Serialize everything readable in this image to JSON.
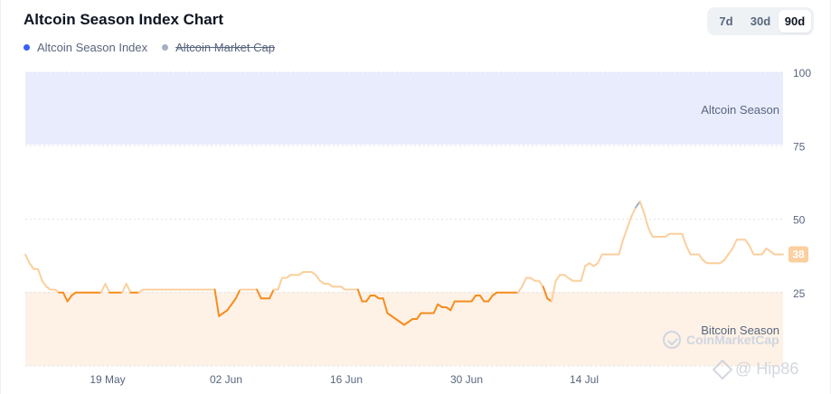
{
  "title": "Altcoin Season Index Chart",
  "legend": [
    {
      "label": "Altcoin Season Index",
      "color": "#3861fb",
      "active": true
    },
    {
      "label": "Altcoin Market Cap",
      "color": "#a6b0c3",
      "active": false
    }
  ],
  "range_tabs": [
    {
      "label": "7d",
      "active": false
    },
    {
      "label": "30d",
      "active": false
    },
    {
      "label": "90d",
      "active": true
    }
  ],
  "zones": {
    "altcoin_label": "Altcoin Season",
    "bitcoin_label": "Bitcoin Season",
    "altcoin_color": "#e9ecfd",
    "bitcoin_color": "#fef1e6"
  },
  "watermark": "CoinMarketCap",
  "overlay_mark": "@ Hip86",
  "chart_data": {
    "type": "line",
    "ylim": [
      0,
      100
    ],
    "yticks": [
      "100",
      "75",
      "50",
      "25",
      ""
    ],
    "xticks": [
      "19 May",
      "02 Jun",
      "16 Jun",
      "30 Jun",
      "14 Jul",
      ""
    ],
    "current_value": "38",
    "line_colors": {
      "bitcoin": "#f68d1f",
      "neutral": "#fbcf9e",
      "altcoin": "#a6b0c3"
    },
    "series": [
      {
        "values": [
          38,
          35,
          33,
          33,
          29,
          27,
          26,
          26,
          25,
          25,
          22,
          24,
          25,
          25,
          25,
          25,
          25,
          25,
          25,
          28,
          25,
          25,
          25,
          25,
          28,
          25,
          25,
          25,
          26,
          26,
          26,
          26,
          26,
          26,
          26,
          26,
          26,
          26,
          26,
          26,
          26,
          26,
          26,
          26,
          26,
          26,
          17,
          18,
          19,
          21,
          23,
          26,
          26,
          26,
          26,
          26,
          23,
          23,
          23,
          26,
          26,
          30,
          30,
          31,
          31,
          31,
          32,
          32,
          32,
          31,
          29,
          28,
          28,
          27,
          27,
          27,
          26,
          26,
          26,
          26,
          22,
          22,
          24,
          24,
          23,
          23,
          18,
          17,
          16,
          15,
          14,
          15,
          16,
          16,
          18,
          18,
          18,
          18,
          21,
          20,
          20,
          19,
          22,
          22,
          22,
          22,
          22,
          24,
          24,
          22,
          22,
          24,
          25,
          25,
          25,
          25,
          25,
          25,
          27,
          30,
          30,
          29,
          29,
          27,
          23,
          22,
          29,
          31,
          31,
          30,
          29,
          29,
          29,
          34,
          35,
          34,
          35,
          38,
          38,
          38,
          38,
          38,
          43,
          47,
          51,
          54,
          56,
          52,
          47,
          44,
          44,
          44,
          44,
          45,
          45,
          45,
          45,
          41,
          38,
          38,
          38,
          36,
          35,
          35,
          35,
          35,
          36,
          38,
          40,
          43,
          43,
          43,
          41,
          38,
          38,
          38,
          40,
          39,
          38,
          38,
          38
        ]
      }
    ]
  }
}
